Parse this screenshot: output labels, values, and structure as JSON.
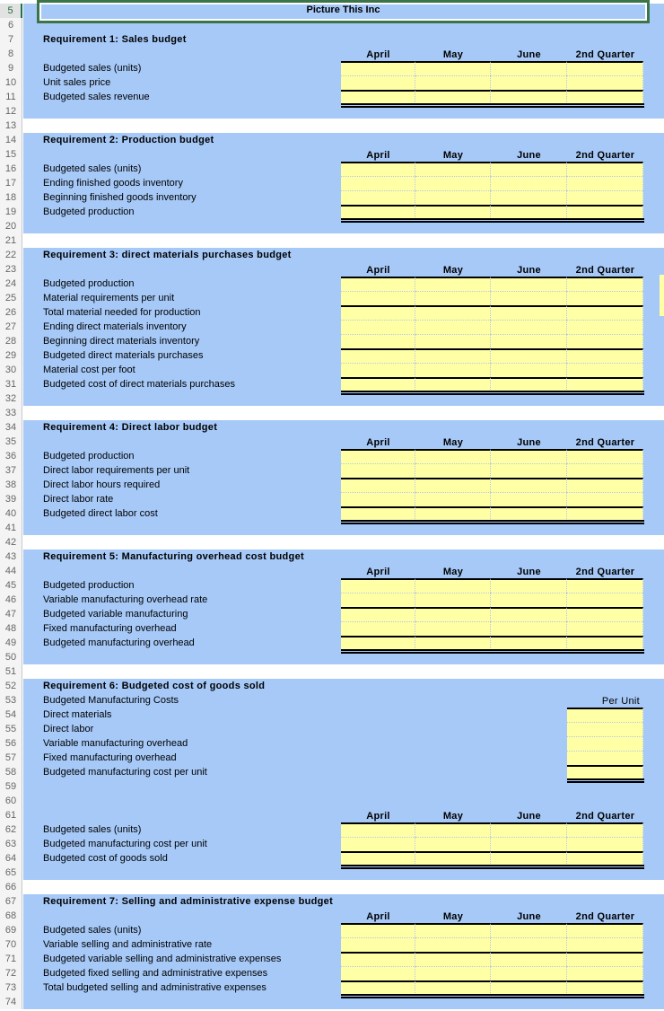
{
  "company_title": "Picture This Inc",
  "selected_row": 5,
  "row_numbers": [
    5,
    6,
    7,
    8,
    9,
    10,
    11,
    12,
    13,
    14,
    15,
    16,
    17,
    18,
    19,
    20,
    21,
    22,
    23,
    24,
    25,
    26,
    27,
    28,
    29,
    30,
    31,
    32,
    33,
    34,
    35,
    36,
    37,
    38,
    39,
    40,
    41,
    42,
    43,
    44,
    45,
    46,
    47,
    48,
    49,
    50,
    51,
    52,
    53,
    54,
    55,
    56,
    57,
    58,
    59,
    60,
    61,
    62,
    63,
    64,
    65,
    66,
    67,
    68,
    69,
    70,
    71,
    72,
    73,
    74
  ],
  "colors": {
    "section_bg": "#a6c9f8",
    "input_cell": "#ffffa6",
    "selection": "#3c7449"
  },
  "columns": [
    "April",
    "May",
    "June",
    "2nd Quarter"
  ],
  "sections": [
    {
      "title": "Requirement 1: Sales budget",
      "items": [
        "Budgeted sales (units)",
        "Unit sales price",
        "Budgeted sales revenue"
      ]
    },
    {
      "title": "Requirement 2: Production budget",
      "items": [
        "Budgeted sales (units)",
        "Ending finished goods inventory",
        "Beginning finished goods inventory",
        "Budgeted production"
      ]
    },
    {
      "title": "Requirement 3: direct materials purchases budget",
      "items": [
        "Budgeted production",
        "Material requirements per unit",
        "Total material needed for production",
        "Ending direct materials inventory",
        "Beginning direct materials inventory",
        "Budgeted direct materials purchases",
        "Material cost per foot",
        "Budgeted cost of direct materials purchases"
      ]
    },
    {
      "title": "Requirement 4: Direct labor budget",
      "items": [
        "Budgeted production",
        "Direct labor requirements per unit",
        "Direct labor hours required",
        "Direct labor rate",
        "Budgeted direct labor cost"
      ]
    },
    {
      "title": "Requirement 5: Manufacturing overhead cost budget",
      "items": [
        "Budgeted production",
        "Variable manufacturing overhead rate",
        "Budgeted variable manufacturing",
        "Fixed manufacturing overhead",
        "Budgeted manufacturing overhead"
      ]
    },
    {
      "title": "Requirement 6: Budgeted cost of goods sold",
      "subheading": "Budgeted Manufacturing Costs",
      "per_unit_label": "Per Unit",
      "unit_items": [
        "Direct materials",
        "Direct labor",
        "Variable manufacturing overhead",
        "Fixed manufacturing overhead",
        "Budgeted manufacturing cost per unit"
      ],
      "items": [
        "Budgeted sales (units)",
        "Budgeted manufacturing cost per unit",
        "Budgeted cost of goods sold"
      ]
    },
    {
      "title": "Requirement 7: Selling and administrative expense budget",
      "items": [
        "Budgeted sales (units)",
        "Variable selling and administrative rate",
        "Budgeted variable selling and administrative expenses",
        "Budgeted fixed selling and administrative expenses",
        "Total budgeted selling and administrative expenses"
      ]
    }
  ]
}
